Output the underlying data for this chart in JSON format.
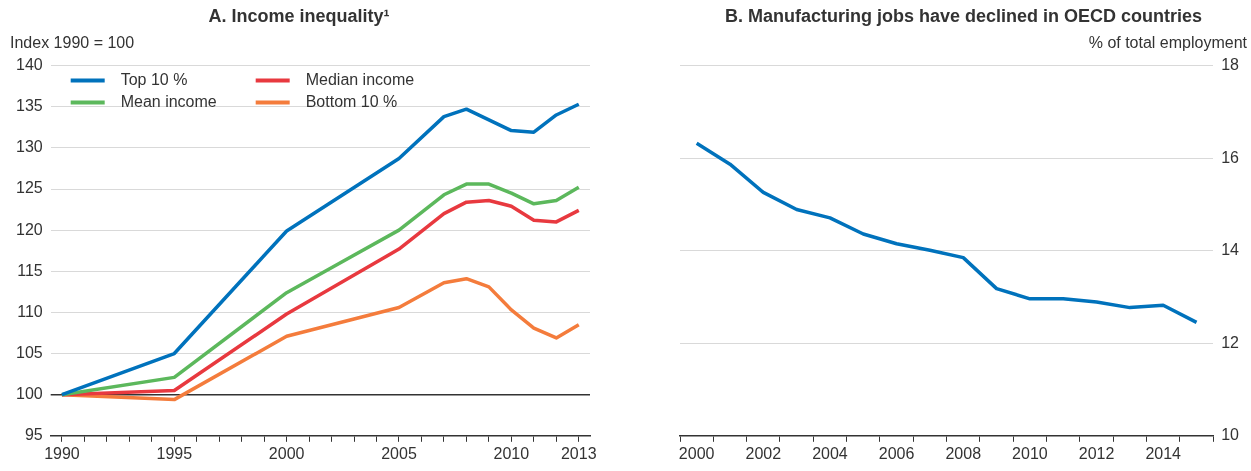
{
  "chart_data": [
    {
      "type": "line",
      "title": "A. Income inequality¹",
      "ylabel": "Index 1990 = 100",
      "x": [
        1990,
        1995,
        2000,
        2005,
        2007,
        2008,
        2009,
        2010,
        2011,
        2012,
        2013
      ],
      "series": [
        {
          "name": "Top 10 %",
          "color": "#0072bc",
          "values": [
            100,
            105.0,
            119.9,
            128.7,
            133.8,
            134.7,
            133.4,
            132.1,
            131.9,
            134.0,
            135.3
          ]
        },
        {
          "name": "Mean income",
          "color": "#5cb85c",
          "values": [
            100,
            102.1,
            112.4,
            120.0,
            124.3,
            125.6,
            125.6,
            124.5,
            123.2,
            123.6,
            125.2
          ]
        },
        {
          "name": "Median income",
          "color": "#e8393f",
          "values": [
            100,
            100.5,
            109.8,
            117.7,
            122.0,
            123.4,
            123.6,
            122.9,
            121.2,
            121.0,
            122.4
          ]
        },
        {
          "name": "Bottom 10 %",
          "color": "#f47c3c",
          "values": [
            100,
            99.4,
            107.1,
            110.6,
            113.6,
            114.1,
            113.1,
            110.3,
            108.1,
            106.9,
            108.5
          ]
        }
      ],
      "xlim": [
        1989.5,
        2013.5
      ],
      "xticks": [
        {
          "value": 1990,
          "label": "1990"
        },
        {
          "value": 1991,
          "label": null
        },
        {
          "value": 1992,
          "label": null
        },
        {
          "value": 1993,
          "label": null
        },
        {
          "value": 1994,
          "label": null
        },
        {
          "value": 1995,
          "label": "1995"
        },
        {
          "value": 1996,
          "label": null
        },
        {
          "value": 1997,
          "label": null
        },
        {
          "value": 1998,
          "label": null
        },
        {
          "value": 1999,
          "label": null
        },
        {
          "value": 2000,
          "label": "2000"
        },
        {
          "value": 2001,
          "label": null
        },
        {
          "value": 2002,
          "label": null
        },
        {
          "value": 2003,
          "label": null
        },
        {
          "value": 2004,
          "label": null
        },
        {
          "value": 2005,
          "label": "2005"
        },
        {
          "value": 2006,
          "label": null
        },
        {
          "value": 2007,
          "label": null
        },
        {
          "value": 2008,
          "label": null
        },
        {
          "value": 2009,
          "label": null
        },
        {
          "value": 2010,
          "label": "2010"
        },
        {
          "value": 2011,
          "label": null
        },
        {
          "value": 2012,
          "label": null
        },
        {
          "value": 2013,
          "label": "2013"
        }
      ],
      "ylim": [
        95,
        140
      ],
      "yticks": [
        95,
        100,
        105,
        110,
        115,
        120,
        125,
        130,
        135,
        140
      ],
      "ref_lines": [
        {
          "axis": "y",
          "value": 100,
          "color": "#333333"
        }
      ],
      "grid": "y",
      "legend": "top left",
      "marker": "none",
      "line_style": "solid"
    },
    {
      "type": "line",
      "title": "B. Manufacturing jobs have declined in OECD countries",
      "y2label": "% of total employment",
      "categories": [
        "2000",
        null,
        "2002",
        null,
        "2004",
        null,
        "2006",
        null,
        "2008",
        null,
        "2010",
        null,
        "2012",
        null,
        "2014",
        null
      ],
      "series": [
        {
          "color": "#0072bc",
          "axis": "y2",
          "values": [
            16.32,
            15.87,
            15.26,
            14.89,
            14.71,
            14.36,
            14.15,
            14.01,
            13.85,
            13.18,
            12.96,
            12.96,
            12.89,
            12.77,
            12.82,
            12.45
          ]
        }
      ],
      "y2lim": [
        10,
        18
      ],
      "y2ticks": [
        10,
        12,
        14,
        16,
        18
      ],
      "grid": "y",
      "legend": false,
      "marker": "none",
      "line_style": "solid"
    }
  ]
}
